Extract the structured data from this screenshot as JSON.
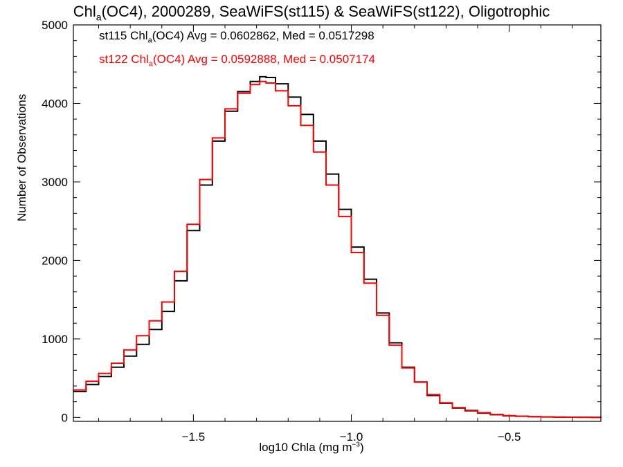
{
  "chart_data": {
    "type": "line",
    "title": {
      "prefix": "Chl",
      "subscript": "a",
      "suffix": "(OC4), 2000289, SeaWiFS(st115) & SeaWiFS(st122), Oligotrophic"
    },
    "xlabel": {
      "prefix": "log10 Chla (mg m",
      "superscript": "−3",
      "suffix": ")"
    },
    "ylabel": "Number of Observations",
    "xlim": [
      -1.88,
      -0.21
    ],
    "ylim": [
      -50,
      5000
    ],
    "x_ticks": [
      -1.5,
      -1.0,
      -0.5
    ],
    "x_tick_labels": [
      "−1.5",
      "−1.0",
      "−0.5"
    ],
    "y_ticks": [
      0,
      1000,
      2000,
      3000,
      4000,
      5000
    ],
    "y_tick_labels": [
      "0",
      "1000",
      "2000",
      "3000",
      "4000",
      "5000"
    ],
    "grid": false,
    "legend_placement": "top-left",
    "series": [
      {
        "label_prefix": "st115 Chl",
        "label_subscript": "a",
        "label_suffix": "(OC4) Avg = 0.0602862, Med = 0.0517298",
        "color": "#000000",
        "step": "histogram",
        "x": [
          -1.88,
          -1.84,
          -1.8,
          -1.76,
          -1.72,
          -1.68,
          -1.64,
          -1.6,
          -1.56,
          -1.52,
          -1.48,
          -1.44,
          -1.4,
          -1.36,
          -1.32,
          -1.29,
          -1.27,
          -1.24,
          -1.2,
          -1.16,
          -1.12,
          -1.08,
          -1.04,
          -1.0,
          -0.96,
          -0.92,
          -0.88,
          -0.84,
          -0.8,
          -0.76,
          -0.72,
          -0.68,
          -0.64,
          -0.6,
          -0.56,
          -0.52,
          -0.48,
          -0.44,
          -0.4,
          -0.36,
          -0.32,
          -0.28,
          -0.24,
          -0.21
        ],
        "y": [
          330,
          420,
          520,
          640,
          780,
          930,
          1120,
          1350,
          1740,
          2380,
          2960,
          3520,
          3900,
          4150,
          4280,
          4340,
          4330,
          4250,
          4080,
          3860,
          3520,
          3100,
          2650,
          2170,
          1760,
          1330,
          950,
          640,
          450,
          280,
          180,
          120,
          85,
          55,
          35,
          20,
          15,
          10,
          6,
          4,
          3,
          2,
          1,
          0
        ]
      },
      {
        "label_prefix": "st122 Chl",
        "label_subscript": "a",
        "label_suffix": "(OC4) Avg = 0.0592888, Med = 0.0507174",
        "color": "#ff0000",
        "step": "histogram",
        "x": [
          -1.88,
          -1.84,
          -1.8,
          -1.76,
          -1.72,
          -1.68,
          -1.64,
          -1.6,
          -1.56,
          -1.52,
          -1.48,
          -1.44,
          -1.4,
          -1.36,
          -1.32,
          -1.29,
          -1.27,
          -1.24,
          -1.2,
          -1.16,
          -1.12,
          -1.08,
          -1.04,
          -1.0,
          -0.96,
          -0.92,
          -0.88,
          -0.84,
          -0.8,
          -0.76,
          -0.72,
          -0.68,
          -0.64,
          -0.6,
          -0.56,
          -0.52,
          -0.48,
          -0.44,
          -0.4,
          -0.36,
          -0.32,
          -0.28,
          -0.24,
          -0.21
        ],
        "y": [
          350,
          460,
          560,
          690,
          860,
          1040,
          1230,
          1470,
          1860,
          2460,
          3030,
          3560,
          3930,
          4130,
          4240,
          4280,
          4260,
          4160,
          3970,
          3720,
          3380,
          2960,
          2560,
          2100,
          1710,
          1300,
          920,
          630,
          450,
          290,
          185,
          125,
          90,
          60,
          38,
          22,
          15,
          10,
          6,
          4,
          3,
          2,
          1,
          0
        ]
      }
    ]
  }
}
